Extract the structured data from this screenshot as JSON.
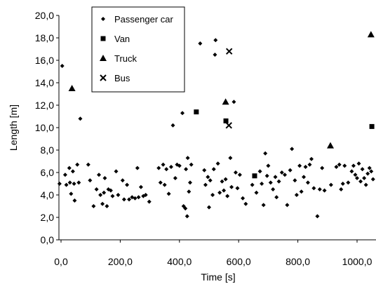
{
  "chart_data": {
    "type": "scatter",
    "title": "",
    "xlabel": "Time [s]",
    "ylabel": "Length [m]",
    "xlim": [
      0,
      1050
    ],
    "ylim": [
      0,
      20
    ],
    "x_ticks": [
      0,
      200,
      400,
      600,
      800,
      1000
    ],
    "x_tick_labels": [
      "0,0",
      "200,0",
      "400,0",
      "600,0",
      "800,0",
      "1000,0"
    ],
    "y_ticks": [
      0,
      2,
      4,
      6,
      8,
      10,
      12,
      14,
      16,
      18,
      20
    ],
    "y_tick_labels": [
      "0,0",
      "2,0",
      "4,0",
      "6,0",
      "8,0",
      "10,0",
      "12,0",
      "14,0",
      "16,0",
      "18,0",
      "20,0"
    ],
    "grid": false,
    "legend_position": "top-left",
    "marker_color": "#000000",
    "series": [
      {
        "name": "Passenger car",
        "marker": "diamond",
        "points": [
          [
            -5,
            5.0
          ],
          [
            4,
            15.5
          ],
          [
            14,
            5.8
          ],
          [
            18,
            4.9
          ],
          [
            28,
            6.4
          ],
          [
            30,
            5.1
          ],
          [
            34,
            4.1
          ],
          [
            40,
            6.1
          ],
          [
            44,
            5.0
          ],
          [
            46,
            3.5
          ],
          [
            55,
            6.7
          ],
          [
            60,
            5.1
          ],
          [
            65,
            10.8
          ],
          [
            92,
            6.7
          ],
          [
            98,
            5.3
          ],
          [
            110,
            3.0
          ],
          [
            120,
            4.5
          ],
          [
            128,
            5.8
          ],
          [
            133,
            4.0
          ],
          [
            140,
            3.2
          ],
          [
            145,
            4.2
          ],
          [
            148,
            5.5
          ],
          [
            155,
            3.0
          ],
          [
            160,
            4.5
          ],
          [
            168,
            4.4
          ],
          [
            174,
            3.9
          ],
          [
            186,
            6.1
          ],
          [
            193,
            4.0
          ],
          [
            208,
            5.3
          ],
          [
            213,
            3.6
          ],
          [
            223,
            4.9
          ],
          [
            230,
            3.6
          ],
          [
            240,
            3.8
          ],
          [
            250,
            3.7
          ],
          [
            258,
            6.4
          ],
          [
            262,
            3.8
          ],
          [
            270,
            4.7
          ],
          [
            278,
            3.9
          ],
          [
            286,
            4.0
          ],
          [
            298,
            3.4
          ],
          [
            330,
            6.4
          ],
          [
            336,
            5.1
          ],
          [
            345,
            6.7
          ],
          [
            350,
            4.9
          ],
          [
            356,
            6.3
          ],
          [
            364,
            4.1
          ],
          [
            372,
            6.5
          ],
          [
            378,
            10.2
          ],
          [
            386,
            5.5
          ],
          [
            392,
            6.7
          ],
          [
            400,
            6.6
          ],
          [
            410,
            11.3
          ],
          [
            414,
            3.0
          ],
          [
            420,
            2.8
          ],
          [
            422,
            6.3
          ],
          [
            426,
            2.1
          ],
          [
            428,
            7.3
          ],
          [
            432,
            4.3
          ],
          [
            436,
            5.1
          ],
          [
            440,
            6.7
          ],
          [
            470,
            17.5
          ],
          [
            484,
            6.2
          ],
          [
            488,
            4.9
          ],
          [
            496,
            5.6
          ],
          [
            500,
            2.9
          ],
          [
            504,
            5.3
          ],
          [
            512,
            4.0
          ],
          [
            516,
            6.3
          ],
          [
            520,
            16.5
          ],
          [
            522,
            17.8
          ],
          [
            530,
            6.8
          ],
          [
            536,
            4.2
          ],
          [
            544,
            5.2
          ],
          [
            550,
            4.4
          ],
          [
            556,
            5.4
          ],
          [
            562,
            3.9
          ],
          [
            572,
            7.3
          ],
          [
            576,
            4.7
          ],
          [
            584,
            12.3
          ],
          [
            590,
            6.0
          ],
          [
            596,
            4.6
          ],
          [
            604,
            5.8
          ],
          [
            614,
            3.7
          ],
          [
            624,
            3.2
          ],
          [
            646,
            4.9
          ],
          [
            660,
            4.2
          ],
          [
            672,
            6.1
          ],
          [
            678,
            5.0
          ],
          [
            684,
            3.1
          ],
          [
            690,
            7.7
          ],
          [
            696,
            5.7
          ],
          [
            700,
            6.6
          ],
          [
            708,
            5.1
          ],
          [
            716,
            4.5
          ],
          [
            724,
            5.6
          ],
          [
            728,
            3.8
          ],
          [
            736,
            5.2
          ],
          [
            746,
            6.0
          ],
          [
            756,
            5.8
          ],
          [
            764,
            3.1
          ],
          [
            774,
            6.2
          ],
          [
            780,
            8.1
          ],
          [
            790,
            5.3
          ],
          [
            796,
            4.0
          ],
          [
            806,
            6.6
          ],
          [
            812,
            4.3
          ],
          [
            820,
            5.6
          ],
          [
            826,
            6.5
          ],
          [
            834,
            5.1
          ],
          [
            840,
            6.7
          ],
          [
            846,
            7.2
          ],
          [
            854,
            4.6
          ],
          [
            866,
            2.1
          ],
          [
            874,
            4.5
          ],
          [
            882,
            6.4
          ],
          [
            890,
            4.4
          ],
          [
            912,
            4.9
          ],
          [
            930,
            6.5
          ],
          [
            940,
            6.7
          ],
          [
            946,
            4.5
          ],
          [
            952,
            5.0
          ],
          [
            958,
            6.6
          ],
          [
            970,
            5.1
          ],
          [
            982,
            6.1
          ],
          [
            988,
            6.6
          ],
          [
            994,
            5.8
          ],
          [
            1000,
            5.5
          ],
          [
            1006,
            6.8
          ],
          [
            1012,
            5.2
          ],
          [
            1018,
            6.3
          ],
          [
            1024,
            5.5
          ],
          [
            1030,
            4.9
          ],
          [
            1036,
            5.9
          ],
          [
            1042,
            6.4
          ],
          [
            1048,
            6.1
          ],
          [
            1054,
            5.4
          ]
        ]
      },
      {
        "name": "Van",
        "marker": "square",
        "points": [
          [
            457,
            11.4
          ],
          [
            557,
            10.6
          ],
          [
            654,
            5.7
          ],
          [
            1050,
            10.1
          ]
        ]
      },
      {
        "name": "Truck",
        "marker": "triangle",
        "points": [
          [
            37,
            13.5
          ],
          [
            556,
            12.3
          ],
          [
            910,
            8.4
          ],
          [
            1047,
            18.3
          ]
        ]
      },
      {
        "name": "Bus",
        "marker": "x",
        "points": [
          [
            568,
            16.8
          ],
          [
            567,
            10.2
          ]
        ]
      }
    ]
  }
}
